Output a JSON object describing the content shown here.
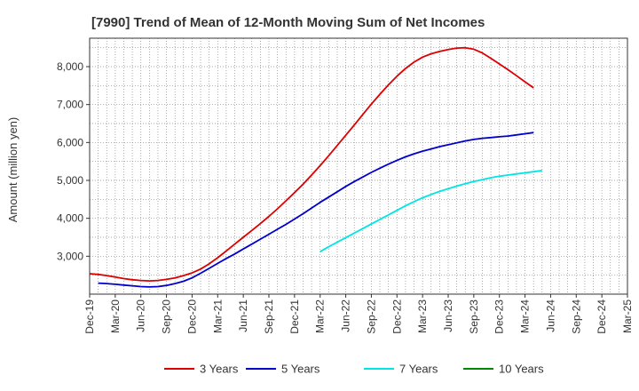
{
  "chart_data": {
    "type": "line",
    "title": "[7990]  Trend of Mean of 12-Month Moving Sum of Net Incomes",
    "xlabel": "",
    "ylabel": "Amount (million yen)",
    "x_ticks": [
      "Dec-19",
      "Mar-20",
      "Jun-20",
      "Sep-20",
      "Dec-20",
      "Mar-21",
      "Jun-21",
      "Sep-21",
      "Dec-21",
      "Mar-22",
      "Jun-22",
      "Sep-22",
      "Dec-22",
      "Mar-23",
      "Jun-23",
      "Sep-23",
      "Dec-23",
      "Mar-24",
      "Jun-24",
      "Sep-24",
      "Dec-24",
      "Mar-25"
    ],
    "y_ticks": [
      3000,
      4000,
      5000,
      6000,
      7000,
      8000
    ],
    "y_tick_labels": [
      "3,000",
      "4,000",
      "5,000",
      "6,000",
      "7,000",
      "8,000"
    ],
    "ylim": [
      2000,
      8750
    ],
    "grid": true,
    "legend_position": "bottom",
    "series": [
      {
        "name": "3 Years",
        "color": "#dd0000",
        "start_index": 0,
        "values": [
          2540,
          2520,
          2490,
          2450,
          2410,
          2380,
          2360,
          2350,
          2360,
          2390,
          2430,
          2490,
          2560,
          2660,
          2800,
          2960,
          3140,
          3320,
          3500,
          3680,
          3860,
          4050,
          4250,
          4460,
          4680,
          4900,
          5140,
          5390,
          5650,
          5920,
          6190,
          6460,
          6740,
          7010,
          7270,
          7520,
          7750,
          7950,
          8120,
          8250,
          8340,
          8400,
          8450,
          8490,
          8500,
          8460,
          8360,
          8220,
          8070,
          7920,
          7760,
          7600,
          7440
        ]
      },
      {
        "name": "5 Years",
        "color": "#0000cc",
        "start_index": 1,
        "values": [
          2290,
          2280,
          2260,
          2240,
          2220,
          2200,
          2190,
          2200,
          2230,
          2280,
          2340,
          2430,
          2550,
          2680,
          2810,
          2940,
          3060,
          3190,
          3320,
          3450,
          3580,
          3710,
          3840,
          3980,
          4120,
          4270,
          4420,
          4560,
          4700,
          4840,
          4970,
          5090,
          5210,
          5320,
          5430,
          5530,
          5620,
          5700,
          5770,
          5830,
          5890,
          5940,
          5990,
          6040,
          6080,
          6110,
          6130,
          6150,
          6170,
          6200,
          6230,
          6260
        ]
      },
      {
        "name": "7 Years",
        "color": "#00e5e5",
        "start_index": 27,
        "values": [
          3120,
          3250,
          3370,
          3490,
          3610,
          3730,
          3850,
          3970,
          4090,
          4210,
          4330,
          4440,
          4540,
          4630,
          4710,
          4780,
          4850,
          4910,
          4970,
          5020,
          5070,
          5110,
          5140,
          5170,
          5200,
          5230,
          5260
        ]
      },
      {
        "name": "10 Years",
        "color": "#008800",
        "start_index": 0,
        "values": []
      }
    ]
  }
}
